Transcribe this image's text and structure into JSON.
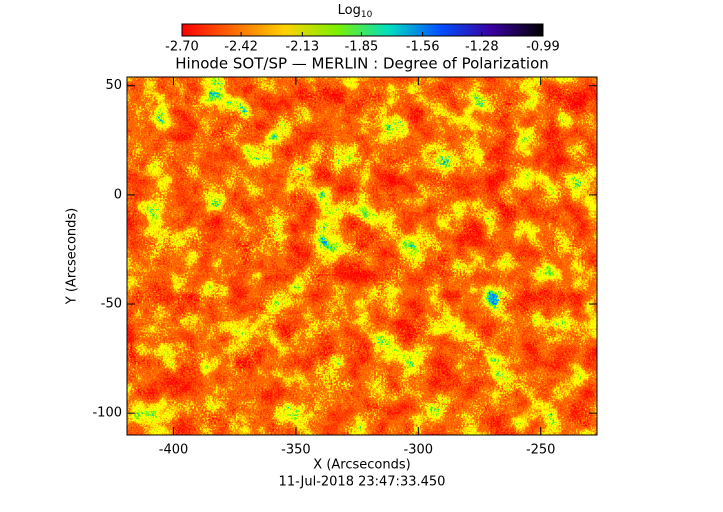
{
  "chart_data": {
    "type": "heatmap",
    "title": "Hinode SOT/SP — MERLIN : Degree of Polarization",
    "colorbar_label": "Log",
    "colorbar_label_subscript": "10",
    "colorbar_lim": [
      -2.7,
      -0.99
    ],
    "colorbar_ticks": [
      {
        "value": -2.7,
        "label": "-2.70"
      },
      {
        "value": -2.42,
        "label": "-2.42"
      },
      {
        "value": -2.13,
        "label": "-2.13"
      },
      {
        "value": -1.85,
        "label": "-1.85"
      },
      {
        "value": -1.56,
        "label": "-1.56"
      },
      {
        "value": -1.28,
        "label": "-1.28"
      },
      {
        "value": -0.99,
        "label": "-0.99"
      }
    ],
    "colormap": [
      "#ff0000",
      "#ff6a00",
      "#ffd200",
      "#7cf000",
      "#00e0c0",
      "#0050ff",
      "#3a00a0",
      "#000000"
    ],
    "x_label": "X (Arcseconds)",
    "y_label": "Y (Arcseconds)",
    "xlim": [
      -419,
      -227
    ],
    "ylim": [
      -110,
      54
    ],
    "xticks": [
      -400,
      -350,
      -300,
      -250
    ],
    "yticks": [
      -100,
      -50,
      0,
      50
    ],
    "timestamp": "11-Jul-2018 23:47:33.450"
  }
}
